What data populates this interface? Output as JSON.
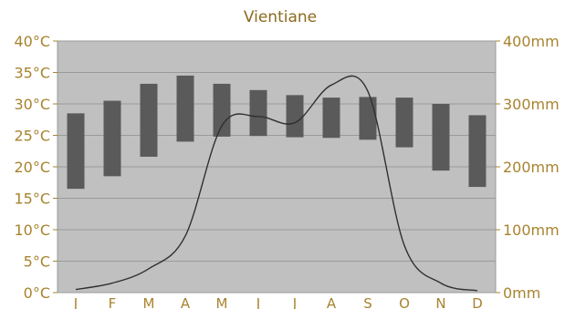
{
  "chart_data": {
    "type": "bar",
    "title": "Vientiane",
    "categories": [
      "J",
      "F",
      "M",
      "A",
      "M",
      "J",
      "J",
      "A",
      "S",
      "O",
      "N",
      "D"
    ],
    "left_axis": {
      "ticks": [
        "0°C",
        "5°C",
        "10°C",
        "15°C",
        "20°C",
        "25°C",
        "30°C",
        "35°C",
        "40°C"
      ],
      "ylim": [
        0,
        40
      ]
    },
    "right_axis": {
      "ticks": [
        "0mm",
        "100mm",
        "200mm",
        "300mm",
        "400mm"
      ],
      "ylim": [
        0,
        400
      ]
    },
    "series": [
      {
        "kind": "range-bar",
        "low": [
          16.5,
          18.5,
          21.6,
          24.0,
          24.8,
          24.9,
          24.7,
          24.6,
          24.3,
          23.1,
          19.4,
          16.8
        ],
        "high": [
          28.5,
          30.5,
          33.2,
          34.5,
          33.2,
          32.2,
          31.4,
          31.0,
          31.1,
          31.0,
          30.0,
          28.2
        ]
      },
      {
        "kind": "line",
        "values": [
          5,
          15,
          38,
          90,
          265,
          280,
          270,
          330,
          320,
          75,
          15,
          3
        ]
      }
    ],
    "grid": true,
    "colors": {
      "plot_bg": "#c0c0c0",
      "bar": "#5a5a5a",
      "line": "#303030",
      "grid": "#9a9a9a",
      "axis_text": "#a8832e",
      "title_text": "#8b6a1e"
    }
  }
}
